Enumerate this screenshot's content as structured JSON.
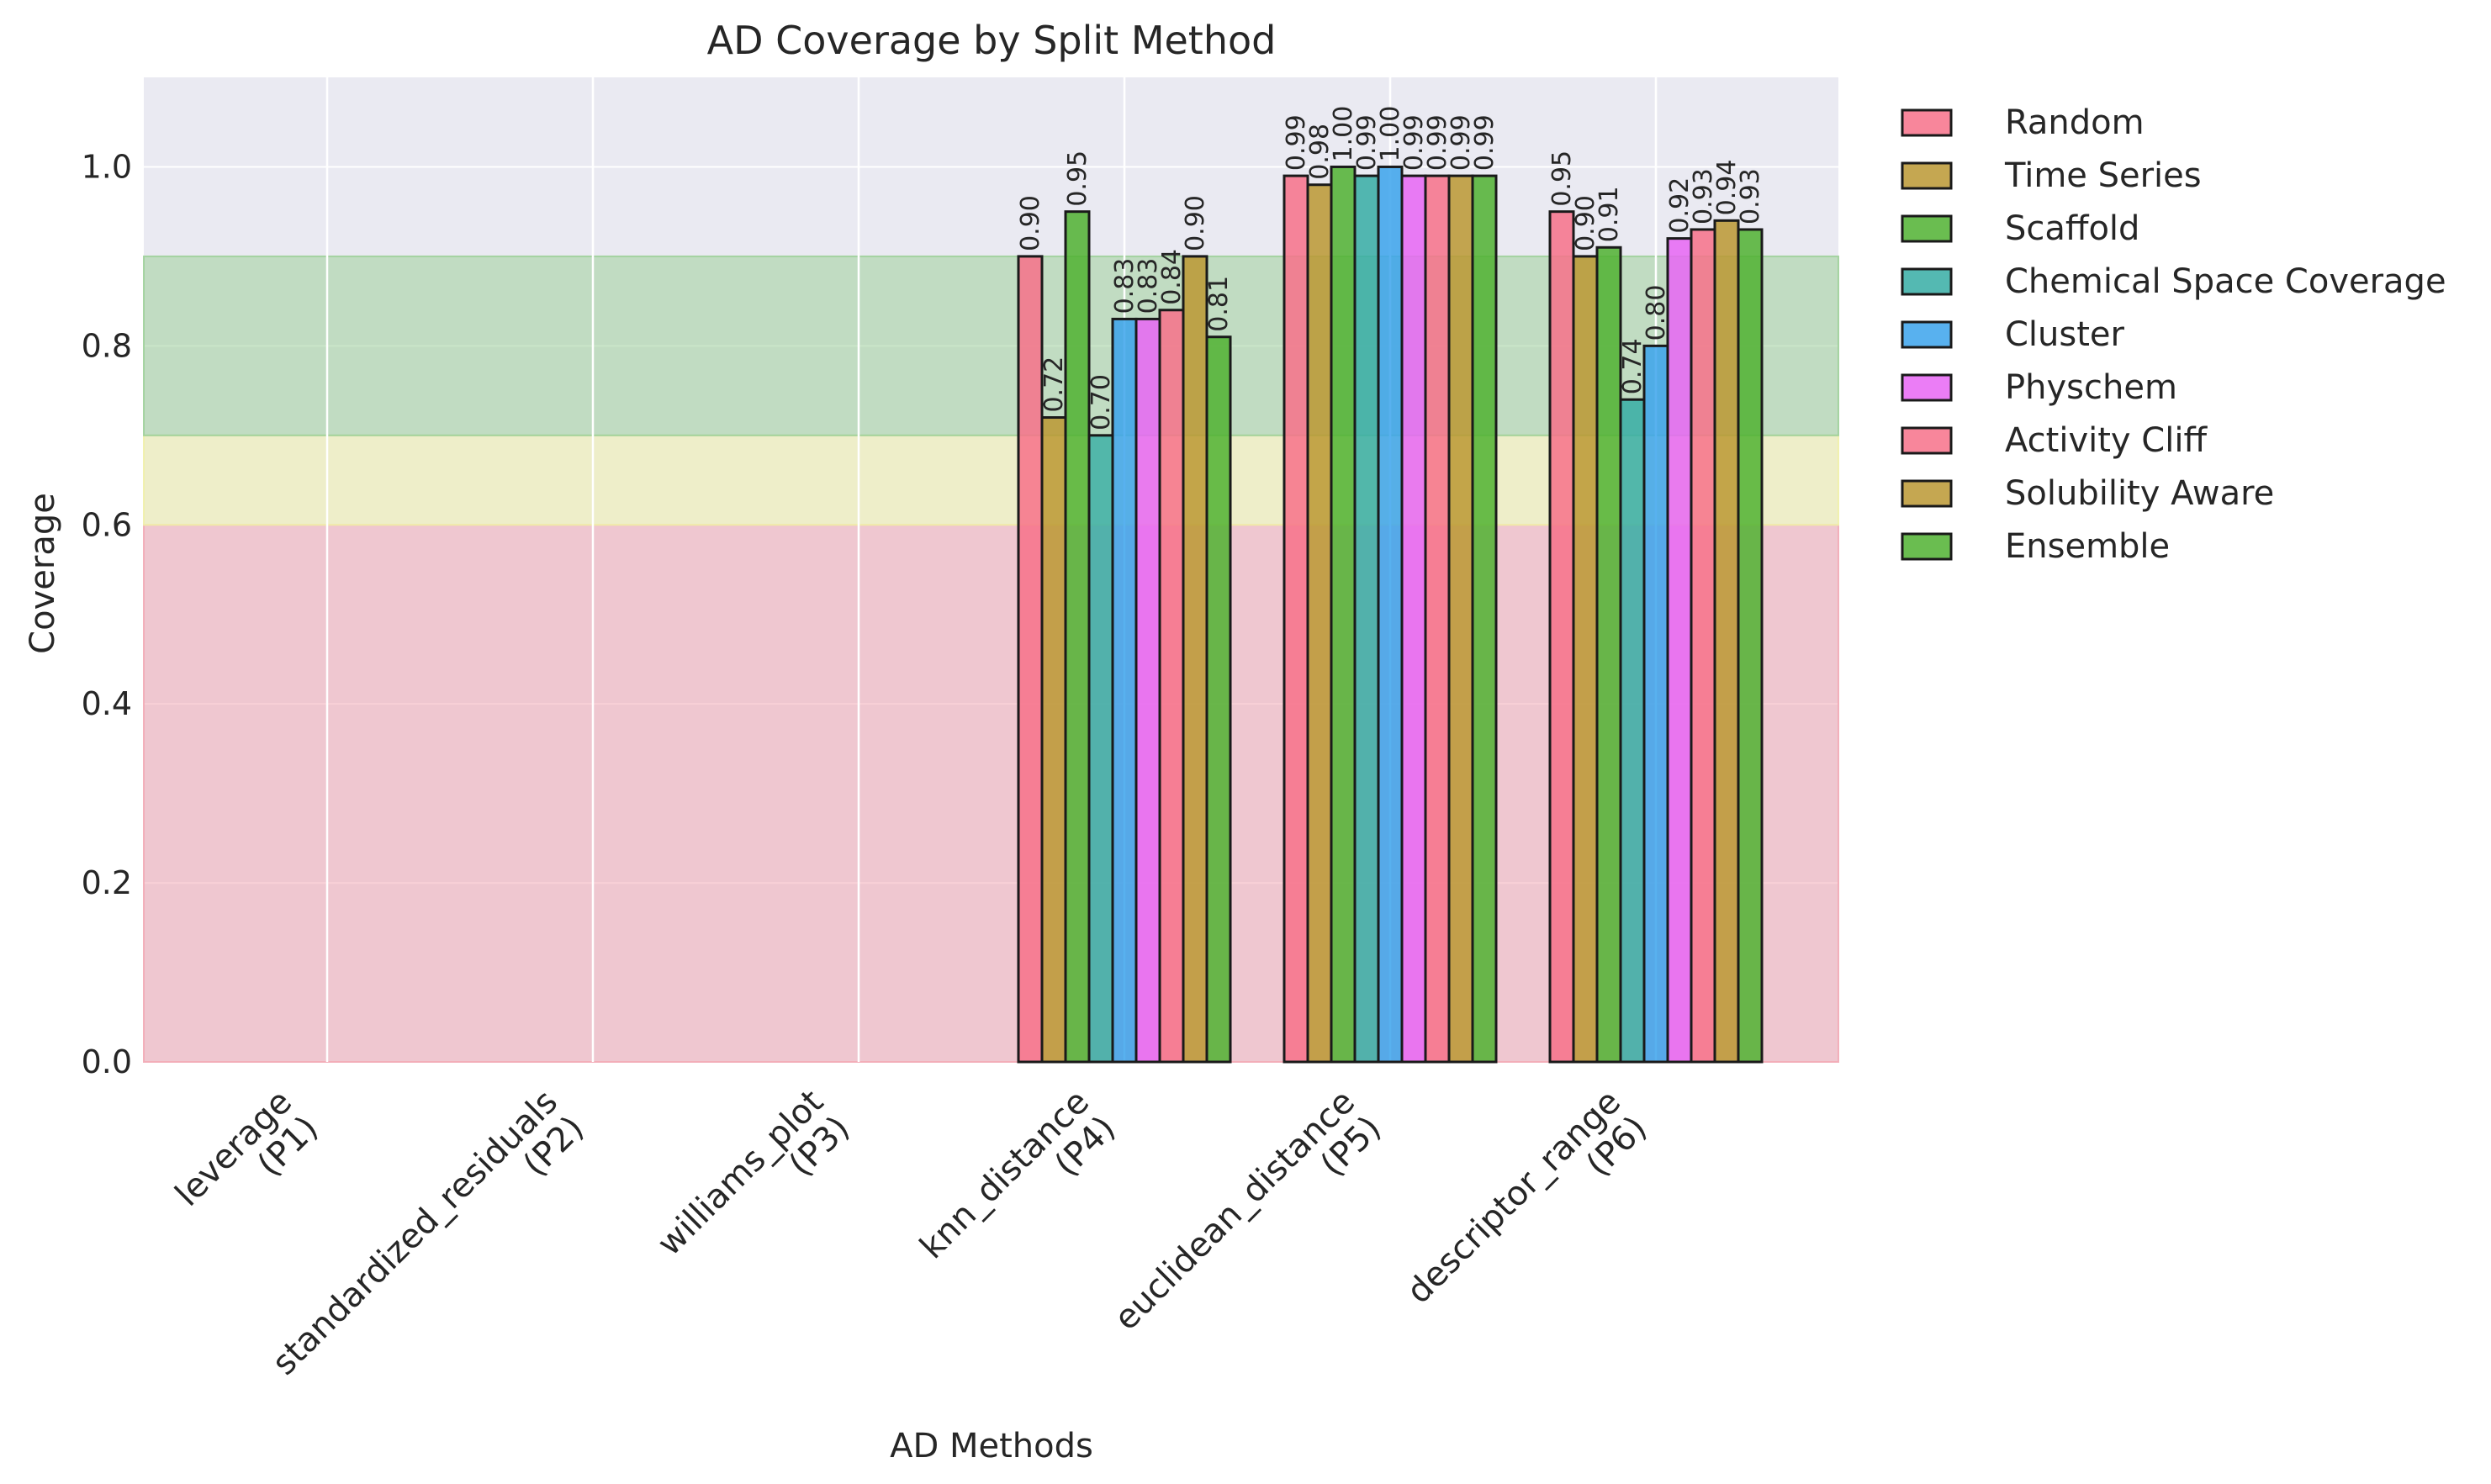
{
  "chart_data": {
    "type": "bar",
    "title": "AD Coverage by Split Method",
    "xlabel": "AD Methods",
    "ylabel": "Coverage",
    "ylim": [
      0,
      1.1
    ],
    "yticks": [
      "0.0",
      "0.2",
      "0.4",
      "0.6",
      "0.8",
      "1.0"
    ],
    "grid": true,
    "legend_position": "outside-right",
    "categories": [
      "leverage\n(P1)",
      "standardized_residuals\n(P2)",
      "williams_plot\n(P3)",
      "knn_distance\n(P4)",
      "euclidean_distance\n(P5)",
      "descriptor_range\n(P6)"
    ],
    "threshold_bands": [
      {
        "from": 0.0,
        "to": 0.6,
        "color": "#f2aab5"
      },
      {
        "from": 0.6,
        "to": 0.7,
        "color": "#f0f0a8"
      },
      {
        "from": 0.7,
        "to": 0.9,
        "color": "#9ed09a"
      }
    ],
    "series": [
      {
        "name": "Random",
        "color": "#f77189",
        "values": [
          0,
          0,
          0,
          0.9,
          0.99,
          0.95
        ],
        "labels": [
          "",
          "",
          "",
          "0.90",
          "0.99",
          "0.95"
        ]
      },
      {
        "name": "Time Series",
        "color": "#bb9832",
        "values": [
          0,
          0,
          0,
          0.72,
          0.98,
          0.9
        ],
        "labels": [
          "",
          "",
          "",
          "0.72",
          "0.98",
          "0.90"
        ]
      },
      {
        "name": "Scaffold",
        "color": "#50b131",
        "values": [
          0,
          0,
          0,
          0.95,
          1.0,
          0.91
        ],
        "labels": [
          "",
          "",
          "",
          "0.95",
          "1.00",
          "0.91"
        ]
      },
      {
        "name": "Chemical Space Coverage",
        "color": "#36ada4",
        "values": [
          0,
          0,
          0,
          0.7,
          0.99,
          0.74
        ],
        "labels": [
          "",
          "",
          "",
          "0.70",
          "0.99",
          "0.74"
        ]
      },
      {
        "name": "Cluster",
        "color": "#3ba3ec",
        "values": [
          0,
          0,
          0,
          0.83,
          1.0,
          0.8
        ],
        "labels": [
          "",
          "",
          "",
          "0.83",
          "1.00",
          "0.80"
        ]
      },
      {
        "name": "Physchem",
        "color": "#e866f4",
        "values": [
          0,
          0,
          0,
          0.83,
          0.99,
          0.92
        ],
        "labels": [
          "",
          "",
          "",
          "0.83",
          "0.99",
          "0.92"
        ]
      },
      {
        "name": "Activity Cliff",
        "color": "#f77189",
        "values": [
          0,
          0,
          0,
          0.84,
          0.99,
          0.93
        ],
        "labels": [
          "",
          "",
          "",
          "0.84",
          "0.99",
          "0.93"
        ]
      },
      {
        "name": "Solubility Aware",
        "color": "#bb9832",
        "values": [
          0,
          0,
          0,
          0.9,
          0.99,
          0.94
        ],
        "labels": [
          "",
          "",
          "",
          "0.90",
          "0.99",
          "0.94"
        ]
      },
      {
        "name": "Ensemble",
        "color": "#50b131",
        "values": [
          0,
          0,
          0,
          0.81,
          0.99,
          0.93
        ],
        "labels": [
          "",
          "",
          "",
          "0.81",
          "0.99",
          "0.93"
        ]
      }
    ]
  }
}
